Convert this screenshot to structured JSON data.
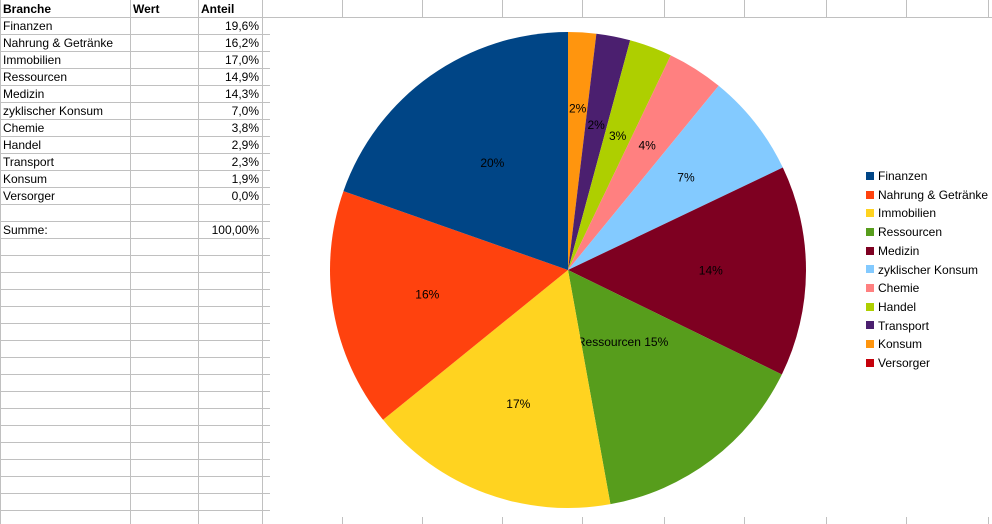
{
  "table": {
    "headers": [
      "Branche",
      "Wert",
      "Anteil"
    ],
    "rows": [
      {
        "branche": "Finanzen",
        "wert": "",
        "anteil": "19,6%"
      },
      {
        "branche": "Nahrung & Getränke",
        "wert": "",
        "anteil": "16,2%"
      },
      {
        "branche": "Immobilien",
        "wert": "",
        "anteil": "17,0%"
      },
      {
        "branche": "Ressourcen",
        "wert": "",
        "anteil": "14,9%"
      },
      {
        "branche": "Medizin",
        "wert": "",
        "anteil": "14,3%"
      },
      {
        "branche": "zyklischer Konsum",
        "wert": "",
        "anteil": "7,0%"
      },
      {
        "branche": "Chemie",
        "wert": "",
        "anteil": "3,8%"
      },
      {
        "branche": "Handel",
        "wert": "",
        "anteil": "2,9%"
      },
      {
        "branche": "Transport",
        "wert": "",
        "anteil": "2,3%"
      },
      {
        "branche": "Konsum",
        "wert": "",
        "anteil": "1,9%"
      },
      {
        "branche": "Versorger",
        "wert": "",
        "anteil": "0,0%"
      }
    ],
    "sum_label": "Summe:",
    "sum_value": "100,00%"
  },
  "chart_data": {
    "type": "pie",
    "categories": [
      "Finanzen",
      "Nahrung & Getränke",
      "Immobilien",
      "Ressourcen",
      "Medizin",
      "zyklischer Konsum",
      "Chemie",
      "Handel",
      "Transport",
      "Konsum",
      "Versorger"
    ],
    "values": [
      19.6,
      16.2,
      17.0,
      14.9,
      14.3,
      7.0,
      3.8,
      2.9,
      2.3,
      1.9,
      0.0
    ],
    "labels": [
      "20%",
      "16%",
      "17%",
      "Ressourcen 15%",
      "14%",
      "7%",
      "4%",
      "3%",
      "2%",
      "2%",
      ""
    ],
    "colors": [
      "#004586",
      "#ff420e",
      "#ffd320",
      "#579d1c",
      "#7e0021",
      "#83caff",
      "#ff8080",
      "#aecf00",
      "#4b1f6f",
      "#ff950e",
      "#c5000b"
    ],
    "legend_position": "right",
    "start": "top, clockwise from Konsum"
  }
}
